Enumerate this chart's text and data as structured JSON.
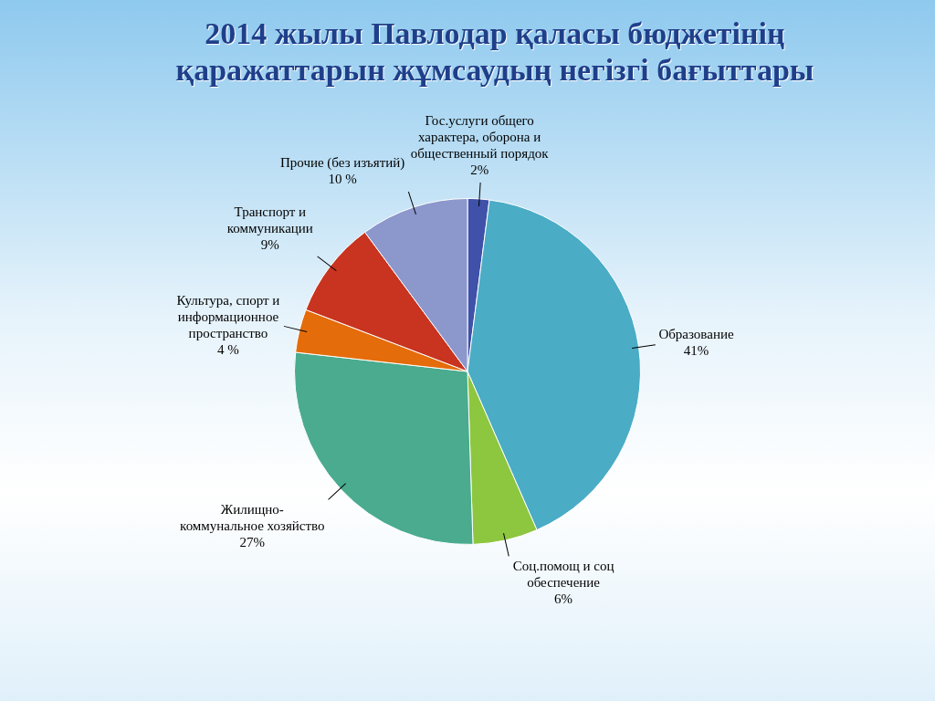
{
  "chart_data": {
    "type": "pie",
    "title": "2014 жылы Павлодар қаласы бюджетінің қаражаттарын жұмсаудың негізгі бағыттары",
    "categories": [
      "Гос.услуги общего характера, оборона и общественный порядок",
      "Образование",
      "Соц.помощ и соц обеспечение",
      "Жилищно-коммунальное хозяйство",
      "Культура, спорт и информационное пространство",
      "Транспорт и коммуникации",
      "Прочие (без изъятий)"
    ],
    "values": [
      2,
      41,
      6,
      27,
      4,
      9,
      10
    ],
    "value_labels": [
      "2%",
      "41%",
      "6%",
      "27%",
      "4 %",
      "9%",
      "10 %"
    ],
    "colors": [
      "#3f51a8",
      "#4bacc6",
      "#8dc63f",
      "#4aab8e",
      "#e46c0a",
      "#c8341f",
      "#8c97cc"
    ],
    "legend": false
  }
}
